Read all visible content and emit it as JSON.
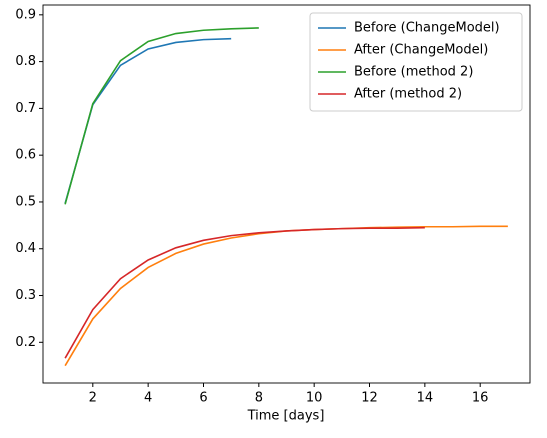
{
  "chart_data": {
    "type": "line",
    "xlabel": "Time [days]",
    "xlim": [
      0.2,
      17.8
    ],
    "xticks": [
      2,
      4,
      6,
      8,
      10,
      12,
      14,
      16
    ],
    "ylim": [
      0.113,
      0.921
    ],
    "yticks": [
      0.2,
      0.3,
      0.4,
      0.5,
      0.6,
      0.7,
      0.8,
      0.9
    ],
    "legend": "upper right",
    "series": [
      {
        "name": "Before (ChangeModel)",
        "color": "#1f77b4",
        "x": [
          1,
          2,
          3,
          4,
          5,
          6,
          7
        ],
        "values": [
          0.497,
          0.708,
          0.792,
          0.827,
          0.841,
          0.847,
          0.849
        ]
      },
      {
        "name": "After (ChangeModel)",
        "color": "#ff7f0e",
        "x": [
          1,
          2,
          3,
          4,
          5,
          6,
          7,
          8,
          9,
          10,
          11,
          12,
          13,
          14,
          15,
          16,
          17
        ],
        "values": [
          0.15,
          0.25,
          0.315,
          0.36,
          0.39,
          0.41,
          0.423,
          0.432,
          0.438,
          0.441,
          0.443,
          0.445,
          0.446,
          0.447,
          0.447,
          0.448,
          0.448
        ]
      },
      {
        "name": "Before (method 2)",
        "color": "#2ca02c",
        "x": [
          1,
          2,
          3,
          4,
          5,
          6,
          7,
          8
        ],
        "values": [
          0.495,
          0.71,
          0.802,
          0.843,
          0.86,
          0.867,
          0.87,
          0.872
        ]
      },
      {
        "name": "After (method 2)",
        "color": "#d62728",
        "x": [
          1,
          2,
          3,
          4,
          5,
          6,
          7,
          8,
          9,
          10,
          11,
          12,
          13,
          14
        ],
        "values": [
          0.166,
          0.27,
          0.336,
          0.376,
          0.402,
          0.418,
          0.428,
          0.434,
          0.438,
          0.441,
          0.443,
          0.444,
          0.444,
          0.445
        ]
      }
    ]
  }
}
